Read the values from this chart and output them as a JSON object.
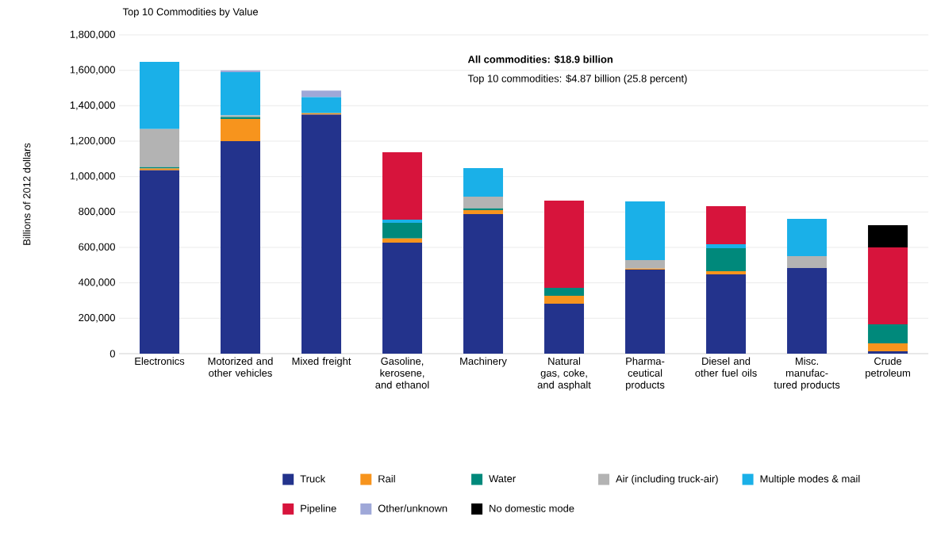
{
  "chart_data": {
    "type": "bar",
    "stacked": true,
    "title": "Top 10 Commodities by Value",
    "ylabel": "Billions of 2012 dollars",
    "annotations": [
      "All commodities: $18.9 billion",
      "Top 10 commodities: $4.87 billion (25.8 percent)"
    ],
    "categories": [
      "Electronics",
      "Motorized and other vehicles",
      "Mixed freight",
      "Gasoline, kerosene, and ethanol",
      "Machinery",
      "Natural gas, coke, and asphalt",
      "Pharma-ceutical products",
      "Diesel and other fuel oils",
      "Misc. manufac-tured products",
      "Crude petroleum"
    ],
    "series": [
      {
        "name": "Truck",
        "color": "#23338c",
        "values": [
          1035000,
          1200000,
          1350000,
          627000,
          788000,
          282000,
          475000,
          448000,
          484000,
          13000
        ]
      },
      {
        "name": "Rail",
        "color": "#f7941d",
        "values": [
          10000,
          125000,
          8000,
          23000,
          22000,
          45000,
          5000,
          18000,
          0,
          45000
        ]
      },
      {
        "name": "Water",
        "color": "#00897b",
        "values": [
          8000,
          12000,
          0,
          89000,
          10000,
          45000,
          0,
          130000,
          0,
          108000
        ]
      },
      {
        "name": "Air (including truck-air)",
        "color": "#b3b3b3",
        "values": [
          215000,
          8000,
          0,
          0,
          67000,
          0,
          48000,
          0,
          67000,
          0
        ]
      },
      {
        "name": "Multiple modes & mail",
        "color": "#1ab0e8",
        "values": [
          380000,
          245000,
          90000,
          18000,
          161000,
          0,
          332000,
          22000,
          210000,
          0
        ]
      },
      {
        "name": "Pipeline",
        "color": "#d7143c",
        "values": [
          0,
          0,
          0,
          380000,
          0,
          492000,
          0,
          215000,
          0,
          434000
        ]
      },
      {
        "name": "Other/unknown",
        "color": "#9fa8d8",
        "values": [
          0,
          10000,
          37000,
          0,
          0,
          0,
          0,
          0,
          0,
          0
        ]
      },
      {
        "name": "No domestic mode",
        "color": "#000000",
        "values": [
          0,
          0,
          0,
          0,
          0,
          0,
          0,
          0,
          0,
          125000
        ]
      }
    ],
    "ylim": [
      0,
      1800000
    ],
    "yticks": [
      {
        "value": 0,
        "label": "0"
      },
      {
        "value": 200000,
        "label": "200,000"
      },
      {
        "value": 400000,
        "label": "400,000"
      },
      {
        "value": 600000,
        "label": "600,000"
      },
      {
        "value": 800000,
        "label": "800,000"
      },
      {
        "value": 1000000,
        "label": "1,000,000"
      },
      {
        "value": 1200000,
        "label": "1,200,000"
      },
      {
        "value": 1400000,
        "label": "1,400,000"
      },
      {
        "value": 1600000,
        "label": "1,600,000"
      },
      {
        "value": 1800000,
        "label": "1,800,000"
      }
    ],
    "grid": "y",
    "legend": "bottom"
  }
}
